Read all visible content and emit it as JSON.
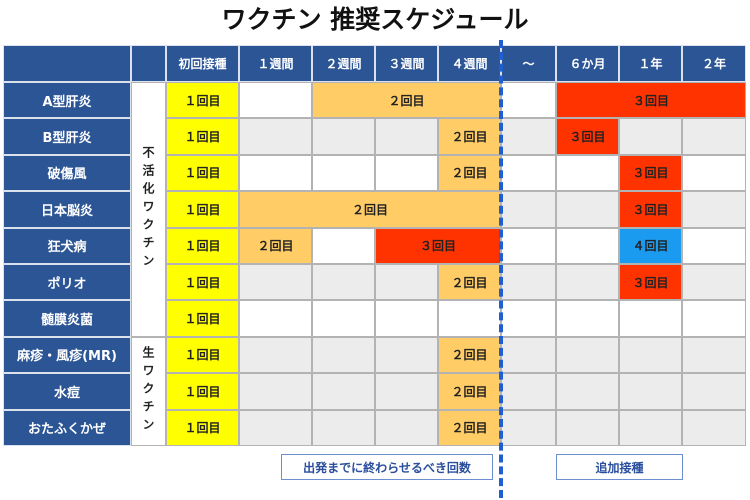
{
  "title": "ワクチン 推奨スケジュール",
  "colors": {
    "header": "#2b5595",
    "first": "#ffff00",
    "second": "#ffcc66",
    "third": "#ff3300",
    "fourth": "#1a9bf0",
    "gray": "#ececec",
    "divider": "#1f5fd1"
  },
  "columns": [
    "初回接種",
    "１週間",
    "２週間",
    "３週間",
    "４週間",
    "～",
    "６か月",
    "１年",
    "２年"
  ],
  "groups": {
    "inactivated": "不活化ワクチン",
    "live": "生ワクチン"
  },
  "rows": [
    {
      "name": "A型肝炎",
      "bars": [
        {
          "from": 0,
          "to": 1,
          "label": "１回目",
          "color": "first"
        },
        {
          "from": 2,
          "to": 5,
          "label": "２回目",
          "color": "second"
        },
        {
          "from": 6,
          "to": 9,
          "label": "３回目",
          "color": "third"
        }
      ]
    },
    {
      "name": "B型肝炎",
      "bars": [
        {
          "from": 0,
          "to": 1,
          "label": "１回目",
          "color": "first"
        },
        {
          "from": 4,
          "to": 5,
          "label": "２回目",
          "color": "second"
        },
        {
          "from": 6,
          "to": 7,
          "label": "３回目",
          "color": "third"
        }
      ]
    },
    {
      "name": "破傷風",
      "bars": [
        {
          "from": 0,
          "to": 1,
          "label": "１回目",
          "color": "first"
        },
        {
          "from": 4,
          "to": 5,
          "label": "２回目",
          "color": "second"
        },
        {
          "from": 7,
          "to": 8,
          "label": "３回目",
          "color": "third"
        }
      ]
    },
    {
      "name": "日本脳炎",
      "bars": [
        {
          "from": 0,
          "to": 1,
          "label": "１回目",
          "color": "first"
        },
        {
          "from": 1,
          "to": 5,
          "label": "２回目",
          "color": "second"
        },
        {
          "from": 7,
          "to": 8,
          "label": "３回目",
          "color": "third"
        }
      ]
    },
    {
      "name": "狂犬病",
      "bars": [
        {
          "from": 0,
          "to": 1,
          "label": "１回目",
          "color": "first"
        },
        {
          "from": 1,
          "to": 2,
          "label": "２回目",
          "color": "second"
        },
        {
          "from": 3,
          "to": 5,
          "label": "３回目",
          "color": "third"
        },
        {
          "from": 7,
          "to": 8,
          "label": "４回目",
          "color": "fourth"
        }
      ]
    },
    {
      "name": "ポリオ",
      "bars": [
        {
          "from": 0,
          "to": 1,
          "label": "１回目",
          "color": "first"
        },
        {
          "from": 4,
          "to": 5,
          "label": "２回目",
          "color": "second"
        },
        {
          "from": 7,
          "to": 8,
          "label": "３回目",
          "color": "third"
        }
      ]
    },
    {
      "name": "髄膜炎菌",
      "bars": [
        {
          "from": 0,
          "to": 1,
          "label": "１回目",
          "color": "first"
        }
      ]
    },
    {
      "name": "麻疹・風疹(MR)",
      "bars": [
        {
          "from": 0,
          "to": 1,
          "label": "１回目",
          "color": "first"
        },
        {
          "from": 4,
          "to": 5,
          "label": "２回目",
          "color": "second"
        }
      ]
    },
    {
      "name": "水痘",
      "bars": [
        {
          "from": 0,
          "to": 1,
          "label": "１回目",
          "color": "first"
        },
        {
          "from": 4,
          "to": 5,
          "label": "２回目",
          "color": "second"
        }
      ]
    },
    {
      "name": "おたふくかぜ",
      "bars": [
        {
          "from": 0,
          "to": 1,
          "label": "１回目",
          "color": "first"
        },
        {
          "from": 4,
          "to": 5,
          "label": "２回目",
          "color": "second"
        }
      ]
    }
  ],
  "legend": {
    "before_departure": "出発までに終わらせるべき回数",
    "booster": "追加接種"
  }
}
